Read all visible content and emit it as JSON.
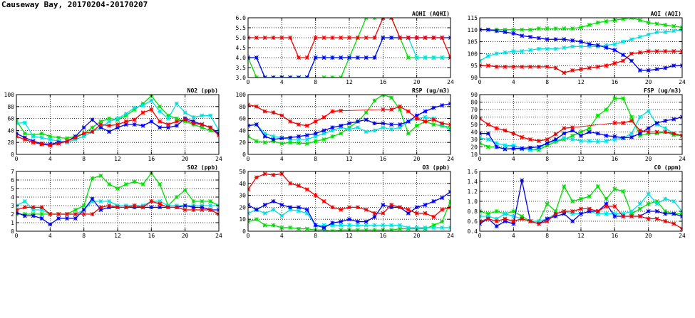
{
  "page": {
    "title": "Causeway Bay, 20170204-20170207"
  },
  "chart_data": [
    {
      "id": "aqhi",
      "type": "line",
      "title": "AQHI (AQHI)",
      "xlim": [
        0,
        24
      ],
      "ylim": [
        3,
        6
      ],
      "xticks": [
        0,
        4,
        8,
        12,
        16,
        20,
        24
      ],
      "yticks": [
        3.0,
        3.5,
        4.0,
        4.5,
        5.0,
        5.5,
        6.0
      ],
      "ydecimals": 1,
      "grid": true,
      "series": [
        {
          "color": "#00dd00",
          "values": [
            4,
            3,
            3,
            3,
            3,
            3,
            3,
            3,
            2,
            3,
            3,
            3,
            4,
            5,
            6,
            6,
            6,
            6,
            5,
            4,
            4,
            4,
            4,
            4,
            4
          ]
        },
        {
          "color": "#00e0e0",
          "values": [
            4,
            4,
            3,
            3,
            3,
            3,
            3,
            3,
            4,
            4,
            4,
            4,
            4,
            4,
            4,
            4,
            5,
            5,
            5,
            5,
            4,
            4,
            4,
            4,
            4
          ]
        },
        {
          "color": "#0000ee",
          "values": [
            4,
            4,
            3,
            3,
            3,
            3,
            3,
            3,
            4,
            4,
            4,
            4,
            4,
            4,
            4,
            4,
            5,
            5,
            5,
            5,
            5,
            5,
            5,
            5,
            5
          ]
        },
        {
          "color": "#ee0000",
          "values": [
            5,
            5,
            5,
            5,
            5,
            5,
            4,
            4,
            5,
            5,
            5,
            5,
            5,
            5,
            5,
            5,
            6,
            6,
            5,
            5,
            5,
            5,
            5,
            5,
            4
          ]
        }
      ]
    },
    {
      "id": "aqi",
      "type": "line",
      "title": "AQI (AQI)",
      "xlim": [
        0,
        24
      ],
      "ylim": [
        90,
        115
      ],
      "xticks": [
        0,
        4,
        8,
        12,
        16,
        20,
        24
      ],
      "yticks": [
        90,
        95,
        100,
        105,
        110,
        115
      ],
      "ydecimals": 0,
      "grid": true,
      "series": [
        {
          "color": "#00dd00",
          "values": [
            110,
            110,
            110,
            110,
            110,
            110,
            110,
            110.5,
            110.5,
            110.5,
            110.5,
            110.5,
            111,
            112,
            113,
            113.5,
            114,
            114.5,
            115,
            114,
            113,
            112.5,
            112,
            111.5,
            111
          ]
        },
        {
          "color": "#00e0e0",
          "values": [
            97,
            99,
            100,
            100.5,
            101,
            101,
            101.5,
            102,
            102,
            102,
            102.5,
            103,
            103,
            103,
            103,
            103.5,
            104,
            105,
            106,
            107,
            108,
            109,
            109,
            109.5,
            110
          ]
        },
        {
          "color": "#0000ee",
          "values": [
            110,
            110,
            109.5,
            109,
            108.5,
            107.5,
            107,
            106.5,
            106,
            106,
            106,
            105.5,
            105,
            104,
            103.5,
            102.5,
            101.5,
            99.5,
            97,
            93,
            93,
            93.5,
            94,
            95,
            95
          ]
        },
        {
          "color": "#ee0000",
          "values": [
            95,
            95,
            94.5,
            94.5,
            94.5,
            94.5,
            94.5,
            94.5,
            94.5,
            94,
            92,
            93,
            93.5,
            94,
            94.5,
            95,
            96,
            97,
            100,
            100.5,
            101,
            101,
            101,
            101,
            101
          ]
        }
      ]
    },
    {
      "id": "no2",
      "type": "line",
      "title": "NO2 (ppb)",
      "xlim": [
        0,
        24
      ],
      "ylim": [
        0,
        100
      ],
      "xticks": [
        0,
        4,
        8,
        12,
        16,
        20,
        24
      ],
      "yticks": [
        0,
        20,
        40,
        60,
        80,
        100
      ],
      "ydecimals": 0,
      "grid": true,
      "series": [
        {
          "color": "#00dd00",
          "values": [
            57,
            35,
            32,
            35,
            30,
            28,
            27,
            30,
            35,
            45,
            55,
            60,
            58,
            65,
            75,
            85,
            98,
            80,
            65,
            60,
            55,
            50,
            45,
            40,
            35
          ]
        },
        {
          "color": "#00e0e0",
          "values": [
            52,
            53,
            30,
            28,
            25,
            22,
            20,
            25,
            30,
            38,
            45,
            55,
            60,
            68,
            78,
            82,
            90,
            72,
            60,
            85,
            70,
            62,
            65,
            65,
            40
          ]
        },
        {
          "color": "#0000ee",
          "values": [
            35,
            28,
            22,
            18,
            17,
            20,
            22,
            30,
            45,
            58,
            45,
            38,
            45,
            50,
            50,
            48,
            55,
            45,
            45,
            48,
            60,
            55,
            50,
            45,
            35
          ]
        },
        {
          "color": "#ee0000",
          "values": [
            30,
            25,
            20,
            17,
            15,
            18,
            22,
            28,
            35,
            38,
            50,
            48,
            50,
            55,
            58,
            70,
            75,
            55,
            50,
            55,
            58,
            52,
            50,
            45,
            32
          ]
        }
      ]
    },
    {
      "id": "rsp",
      "type": "line",
      "title": "RSP (ug/m3)",
      "xlim": [
        0,
        24
      ],
      "ylim": [
        0,
        100
      ],
      "xticks": [
        0,
        4,
        8,
        12,
        16,
        20,
        24
      ],
      "yticks": [
        0,
        20,
        40,
        60,
        80,
        100
      ],
      "ydecimals": 0,
      "grid": true,
      "series": [
        {
          "color": "#00dd00",
          "values": [
            30,
            22,
            20,
            22,
            18,
            20,
            19,
            18,
            22,
            25,
            30,
            35,
            45,
            55,
            70,
            90,
            100,
            95,
            75,
            35,
            48,
            55,
            50,
            48,
            45
          ]
        },
        {
          "color": "#00e0e0",
          "values": [
            48,
            50,
            35,
            30,
            28,
            25,
            25,
            25,
            30,
            35,
            40,
            45,
            42,
            45,
            38,
            40,
            45,
            42,
            45,
            55,
            60,
            62,
            60,
            50,
            40
          ]
        },
        {
          "color": "#0000ee",
          "values": [
            48,
            50,
            30,
            25,
            27,
            28,
            30,
            32,
            35,
            40,
            45,
            48,
            52,
            55,
            58,
            52,
            52,
            50,
            50,
            55,
            65,
            72,
            78,
            82,
            85
          ]
        },
        {
          "color": "#ee0000",
          "values": [
            83,
            80,
            72,
            70,
            65,
            55,
            50,
            48,
            55,
            62,
            72,
            73,
            null,
            null,
            null,
            null,
            75,
            75,
            80,
            72,
            60,
            55,
            58,
            52,
            50
          ]
        }
      ]
    },
    {
      "id": "fsp",
      "type": "line",
      "title": "FSP (ug/m3)",
      "xlim": [
        0,
        24
      ],
      "ylim": [
        10,
        90
      ],
      "xticks": [
        0,
        4,
        8,
        12,
        16,
        20,
        24
      ],
      "yticks": [
        10,
        20,
        30,
        40,
        50,
        60,
        70,
        80,
        90
      ],
      "ydecimals": 0,
      "grid": true,
      "series": [
        {
          "color": "#00dd00",
          "values": [
            25,
            20,
            20,
            17,
            18,
            17,
            17,
            16,
            22,
            27,
            30,
            35,
            40,
            45,
            62,
            70,
            85,
            85,
            60,
            35,
            38,
            38,
            40,
            36,
            35
          ]
        },
        {
          "color": "#00e0e0",
          "values": [
            32,
            30,
            25,
            22,
            22,
            18,
            16,
            18,
            25,
            28,
            32,
            30,
            28,
            28,
            27,
            28,
            30,
            32,
            38,
            60,
            68,
            50,
            45,
            38,
            35
          ]
        },
        {
          "color": "#0000ee",
          "values": [
            38,
            38,
            20,
            17,
            18,
            18,
            19,
            20,
            25,
            30,
            38,
            42,
            35,
            40,
            38,
            35,
            34,
            32,
            33,
            38,
            45,
            52,
            55,
            57,
            60
          ]
        },
        {
          "color": "#ee0000",
          "values": [
            58,
            50,
            45,
            42,
            38,
            33,
            30,
            28,
            30,
            37,
            45,
            46,
            null,
            null,
            null,
            null,
            52,
            52,
            55,
            42,
            40,
            40,
            40,
            38,
            35
          ]
        }
      ]
    },
    {
      "id": "so2",
      "type": "line",
      "title": "SO2 (ppb)",
      "xlim": [
        0,
        24
      ],
      "ylim": [
        0,
        7
      ],
      "xticks": [
        0,
        4,
        8,
        12,
        16,
        20,
        24
      ],
      "yticks": [
        0,
        1,
        2,
        3,
        4,
        5,
        6,
        7
      ],
      "ydecimals": 0,
      "grid": true,
      "series": [
        {
          "color": "#00dd00",
          "values": [
            2,
            2,
            2,
            2,
            2,
            2,
            2,
            2.5,
            3,
            6.2,
            6.5,
            5.5,
            5,
            5.5,
            5.8,
            5.5,
            6.8,
            5.5,
            3,
            4,
            4.8,
            3.5,
            3.5,
            3.5,
            3
          ]
        },
        {
          "color": "#00e0e0",
          "values": [
            3,
            3.5,
            2.5,
            2.5,
            2,
            2,
            2,
            2,
            2.5,
            3.5,
            3.5,
            3.5,
            3,
            3,
            3,
            3,
            3.5,
            3.5,
            3,
            3,
            3,
            3,
            3,
            3,
            3
          ]
        },
        {
          "color": "#0000ee",
          "values": [
            2.2,
            1.8,
            1.8,
            1.5,
            0.8,
            1.5,
            1.5,
            1.5,
            2.5,
            3.8,
            2.5,
            2.8,
            2.8,
            2.8,
            2.8,
            2.8,
            2.8,
            2.8,
            2.8,
            2.8,
            3,
            2.8,
            2.8,
            2.5,
            2.5
          ]
        },
        {
          "color": "#ee0000",
          "values": [
            2.5,
            2.8,
            2.8,
            2.8,
            2,
            2,
            2,
            2,
            2,
            2,
            2.8,
            3,
            2.8,
            2.8,
            3,
            2.8,
            3.5,
            3.2,
            2.8,
            2.8,
            2.5,
            2.5,
            2.5,
            2.5,
            2
          ]
        }
      ]
    },
    {
      "id": "o3",
      "type": "line",
      "title": "O3 (ppb)",
      "xlim": [
        0,
        24
      ],
      "ylim": [
        0,
        50
      ],
      "xticks": [
        0,
        4,
        8,
        12,
        16,
        20,
        24
      ],
      "yticks": [
        0,
        10,
        20,
        30,
        40,
        50
      ],
      "ydecimals": 0,
      "grid": true,
      "series": [
        {
          "color": "#00dd00",
          "values": [
            8,
            10,
            5,
            5,
            3,
            3,
            2,
            2,
            1,
            1,
            0,
            1,
            1,
            1,
            1,
            1,
            1,
            1,
            2,
            2,
            2,
            2,
            5,
            8,
            25
          ]
        },
        {
          "color": "#00e0e0",
          "values": [
            15,
            18,
            15,
            18,
            13,
            18,
            17,
            15,
            5,
            5,
            5,
            5,
            5,
            5,
            5,
            5,
            5,
            5,
            5,
            3,
            3,
            3,
            3,
            3,
            3
          ]
        },
        {
          "color": "#0000ee",
          "values": [
            22,
            18,
            22,
            25,
            22,
            20,
            20,
            18,
            5,
            3,
            7,
            8,
            10,
            8,
            8,
            12,
            22,
            20,
            20,
            15,
            20,
            22,
            25,
            28,
            33
          ]
        },
        {
          "color": "#ee0000",
          "values": [
            35,
            45,
            48,
            47,
            48,
            40,
            38,
            35,
            30,
            25,
            20,
            18,
            20,
            20,
            18,
            15,
            15,
            22,
            20,
            18,
            15,
            15,
            12,
            18,
            20
          ]
        }
      ]
    },
    {
      "id": "co",
      "type": "line",
      "title": "CO (ppm)",
      "xlim": [
        0,
        24
      ],
      "ylim": [
        0.4,
        1.6
      ],
      "xticks": [
        0,
        4,
        8,
        12,
        16,
        20,
        24
      ],
      "yticks": [
        0.4,
        0.6,
        0.8,
        1.0,
        1.2,
        1.4,
        1.6
      ],
      "ydecimals": 1,
      "grid": true,
      "series": [
        {
          "color": "#00dd00",
          "values": [
            0.8,
            0.75,
            0.8,
            0.75,
            0.8,
            0.7,
            0.6,
            0.6,
            0.95,
            0.8,
            1.3,
            1.0,
            1.05,
            1.1,
            1.3,
            1.05,
            1.25,
            1.2,
            0.75,
            0.85,
            0.95,
            1.0,
            0.8,
            0.75,
            0.75
          ]
        },
        {
          "color": "#00e0e0",
          "values": [
            0.7,
            0.7,
            0.65,
            0.75,
            0.7,
            0.65,
            0.6,
            0.6,
            0.65,
            0.75,
            0.8,
            0.75,
            0.75,
            0.8,
            0.75,
            0.75,
            0.75,
            0.75,
            0.8,
            0.95,
            1.15,
            0.95,
            1.05,
            1.0,
            0.8
          ]
        },
        {
          "color": "#0000ee",
          "values": [
            0.55,
            0.65,
            0.5,
            0.6,
            0.55,
            1.42,
            0.6,
            0.55,
            0.65,
            0.7,
            0.75,
            0.6,
            0.75,
            0.8,
            0.8,
            0.95,
            0.7,
            0.7,
            0.7,
            0.7,
            0.8,
            0.8,
            0.75,
            0.75,
            0.7
          ]
        },
        {
          "color": "#ee0000",
          "values": [
            0.6,
            0.65,
            0.6,
            0.65,
            0.6,
            0.65,
            0.6,
            0.55,
            0.6,
            0.75,
            0.8,
            0.8,
            0.85,
            0.85,
            0.8,
            0.9,
            0.9,
            0.7,
            0.7,
            0.7,
            0.65,
            0.65,
            0.6,
            0.55,
            0.45
          ]
        }
      ]
    }
  ]
}
